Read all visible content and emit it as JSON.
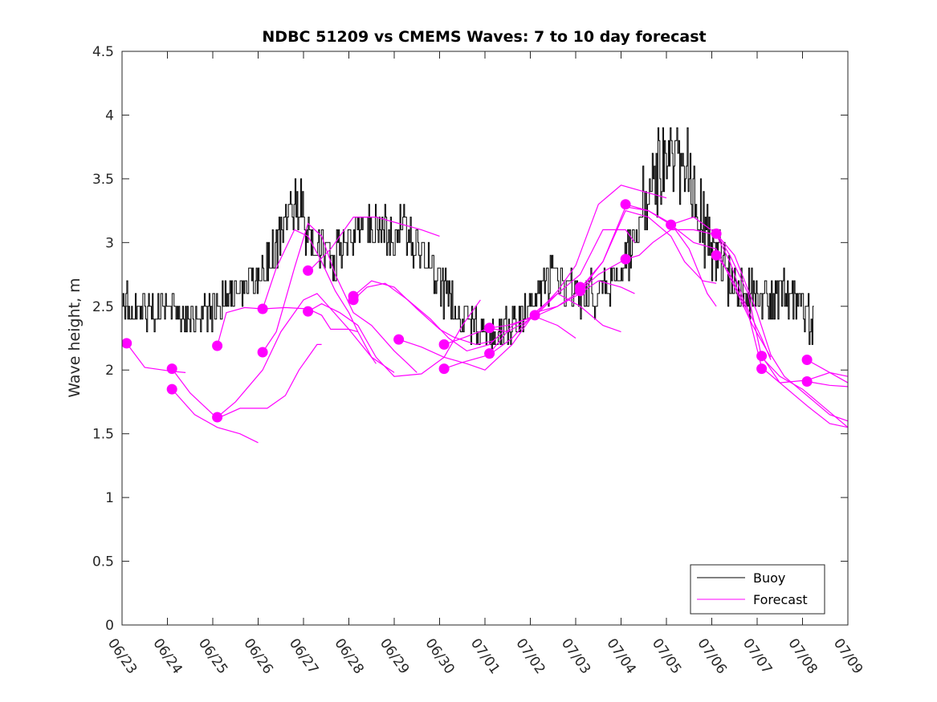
{
  "chart_data": {
    "type": "line",
    "title": "NDBC 51209 vs CMEMS Waves: 7 to 10 day forecast",
    "xlabel": "",
    "ylabel": "Wave height, m",
    "xlim": [
      0,
      16
    ],
    "ylim": [
      0,
      4.5
    ],
    "x_ticks": [
      0,
      1,
      2,
      3,
      4,
      5,
      6,
      7,
      8,
      9,
      10,
      11,
      12,
      13,
      14,
      15,
      16
    ],
    "x_tick_labels": [
      "06/23",
      "06/24",
      "06/25",
      "06/26",
      "06/27",
      "06/28",
      "06/29",
      "06/30",
      "07/01",
      "07/02",
      "07/03",
      "07/04",
      "07/05",
      "07/06",
      "07/07",
      "07/08",
      "07/09"
    ],
    "y_ticks": [
      0,
      0.5,
      1,
      1.5,
      2,
      2.5,
      3,
      3.5,
      4,
      4.5
    ],
    "y_tick_labels": [
      "0",
      "0.5",
      "1",
      "1.5",
      "2",
      "2.5",
      "3",
      "3.5",
      "4",
      "4.5"
    ],
    "grid": false,
    "legend": {
      "placement": "bottom-right",
      "entries": [
        "Buoy",
        "Forecast"
      ]
    },
    "colors": {
      "buoy": "#000000",
      "forecast": "#ff00ff"
    },
    "buoy": {
      "name": "Buoy",
      "x_range": [
        0,
        15.25
      ],
      "anchors": [
        [
          0,
          2.55
        ],
        [
          0.5,
          2.45
        ],
        [
          1,
          2.45
        ],
        [
          1.5,
          2.4
        ],
        [
          2,
          2.45
        ],
        [
          2.5,
          2.6
        ],
        [
          3,
          2.7
        ],
        [
          3.5,
          3.05
        ],
        [
          3.8,
          3.3
        ],
        [
          4,
          3.2
        ],
        [
          4.3,
          2.95
        ],
        [
          4.6,
          2.85
        ],
        [
          5,
          3.05
        ],
        [
          5.5,
          3.15
        ],
        [
          6,
          3.1
        ],
        [
          6.5,
          2.95
        ],
        [
          7,
          2.65
        ],
        [
          7.5,
          2.45
        ],
        [
          8,
          2.25
        ],
        [
          8.5,
          2.35
        ],
        [
          9,
          2.5
        ],
        [
          9.5,
          2.75
        ],
        [
          10,
          2.55
        ],
        [
          10.5,
          2.6
        ],
        [
          11,
          2.75
        ],
        [
          11.5,
          3.3
        ],
        [
          12,
          3.65
        ],
        [
          12.5,
          3.55
        ],
        [
          13,
          3.0
        ],
        [
          13.5,
          2.7
        ],
        [
          14,
          2.55
        ],
        [
          14.5,
          2.6
        ],
        [
          15,
          2.5
        ],
        [
          15.25,
          2.3
        ]
      ],
      "amplitude": [
        [
          0,
          0.14
        ],
        [
          3,
          0.14
        ],
        [
          3.5,
          0.22
        ],
        [
          4.5,
          0.22
        ],
        [
          5,
          0.2
        ],
        [
          7,
          0.18
        ],
        [
          8,
          0.12
        ],
        [
          9,
          0.15
        ],
        [
          11,
          0.15
        ],
        [
          11.5,
          0.28
        ],
        [
          12.8,
          0.3
        ],
        [
          13.5,
          0.2
        ],
        [
          15.25,
          0.18
        ]
      ]
    },
    "forecast": {
      "name": "Forecast",
      "lines": [
        [
          [
            0.1,
            2.21
          ],
          [
            0.5,
            2.02
          ],
          [
            1.1,
            1.99
          ],
          [
            1.4,
            1.98
          ]
        ],
        [
          [
            1.1,
            1.85
          ],
          [
            1.6,
            1.65
          ],
          [
            2.1,
            1.55
          ],
          [
            2.6,
            1.5
          ],
          [
            3.0,
            1.43
          ]
        ],
        [
          [
            1.1,
            2.01
          ],
          [
            1.5,
            1.82
          ],
          [
            2.1,
            1.62
          ],
          [
            2.6,
            1.7
          ],
          [
            3.2,
            1.7
          ],
          [
            3.6,
            1.8
          ],
          [
            3.9,
            2.0
          ],
          [
            4.3,
            2.2
          ],
          [
            4.4,
            2.2
          ]
        ],
        [
          [
            2.1,
            1.63
          ],
          [
            2.5,
            1.75
          ],
          [
            3.1,
            2.0
          ],
          [
            3.5,
            2.3
          ],
          [
            4.0,
            2.55
          ],
          [
            4.3,
            2.6
          ],
          [
            4.5,
            2.52
          ],
          [
            5.0,
            2.32
          ],
          [
            5.5,
            2.1
          ],
          [
            6.0,
            1.98
          ]
        ],
        [
          [
            2.1,
            2.19
          ],
          [
            2.3,
            2.45
          ],
          [
            2.7,
            2.49
          ],
          [
            3.1,
            2.48
          ],
          [
            3.6,
            2.49
          ],
          [
            4.1,
            2.48
          ],
          [
            4.4,
            2.43
          ],
          [
            4.6,
            2.32
          ],
          [
            5.0,
            2.32
          ],
          [
            5.2,
            2.3
          ]
        ],
        [
          [
            3.1,
            2.14
          ],
          [
            3.4,
            2.3
          ],
          [
            3.8,
            2.8
          ],
          [
            4.1,
            3.15
          ],
          [
            4.4,
            3.05
          ],
          [
            4.7,
            2.75
          ],
          [
            5.1,
            2.45
          ],
          [
            5.5,
            2.35
          ],
          [
            6.0,
            2.15
          ],
          [
            6.3,
            2.05
          ],
          [
            6.5,
            1.98
          ]
        ],
        [
          [
            3.1,
            2.48
          ],
          [
            3.4,
            2.8
          ],
          [
            3.8,
            3.1
          ],
          [
            4.1,
            3.05
          ],
          [
            4.4,
            2.85
          ],
          [
            4.7,
            2.62
          ],
          [
            5.0,
            2.45
          ],
          [
            5.2,
            2.3
          ],
          [
            5.5,
            2.1
          ],
          [
            5.6,
            2.05
          ]
        ],
        [
          [
            4.1,
            2.46
          ],
          [
            4.4,
            2.52
          ],
          [
            4.8,
            2.45
          ],
          [
            5.2,
            2.35
          ],
          [
            5.6,
            2.1
          ],
          [
            6.0,
            1.95
          ],
          [
            6.6,
            1.97
          ],
          [
            7.1,
            2.1
          ],
          [
            7.5,
            2.35
          ],
          [
            7.9,
            2.55
          ]
        ],
        [
          [
            4.1,
            2.77
          ],
          [
            4.6,
            2.95
          ],
          [
            5.1,
            3.2
          ],
          [
            5.6,
            3.2
          ],
          [
            6.1,
            3.15
          ],
          [
            6.6,
            3.1
          ],
          [
            7.0,
            3.05
          ]
        ],
        [
          [
            5.1,
            2.55
          ],
          [
            5.4,
            2.65
          ],
          [
            5.8,
            2.68
          ],
          [
            6.3,
            2.55
          ],
          [
            6.8,
            2.4
          ],
          [
            7.2,
            2.25
          ],
          [
            7.6,
            2.15
          ],
          [
            8.1,
            2.2
          ],
          [
            8.4,
            2.3
          ]
        ],
        [
          [
            5.1,
            2.58
          ],
          [
            5.5,
            2.7
          ],
          [
            6.0,
            2.65
          ],
          [
            6.5,
            2.48
          ],
          [
            7.0,
            2.32
          ],
          [
            7.3,
            2.26
          ],
          [
            7.8,
            2.2
          ],
          [
            8.2,
            2.23
          ]
        ],
        [
          [
            6.1,
            2.24
          ],
          [
            6.6,
            2.18
          ],
          [
            7.1,
            2.1
          ],
          [
            7.6,
            2.05
          ],
          [
            8.0,
            2.0
          ],
          [
            8.6,
            2.2
          ],
          [
            9.1,
            2.45
          ],
          [
            9.6,
            2.6
          ],
          [
            10.1,
            2.5
          ],
          [
            10.6,
            2.35
          ],
          [
            11.0,
            2.3
          ]
        ],
        [
          [
            7.1,
            2.01
          ],
          [
            7.5,
            2.06
          ],
          [
            8.1,
            2.12
          ],
          [
            8.6,
            2.25
          ],
          [
            9.1,
            2.45
          ],
          [
            9.6,
            2.5
          ],
          [
            10.1,
            2.6
          ],
          [
            10.5,
            2.7
          ],
          [
            11.0,
            2.65
          ],
          [
            11.3,
            2.6
          ]
        ],
        [
          [
            7.1,
            2.2
          ],
          [
            7.5,
            2.25
          ],
          [
            8.1,
            2.33
          ],
          [
            8.5,
            2.3
          ],
          [
            9.1,
            2.42
          ],
          [
            9.6,
            2.6
          ],
          [
            10.1,
            2.75
          ],
          [
            10.6,
            3.1
          ],
          [
            11.1,
            3.1
          ],
          [
            11.3,
            3.0
          ]
        ],
        [
          [
            8.1,
            2.33
          ],
          [
            8.5,
            2.35
          ],
          [
            9.1,
            2.42
          ],
          [
            9.6,
            2.35
          ],
          [
            10.0,
            2.25
          ]
        ],
        [
          [
            8.1,
            2.13
          ],
          [
            8.6,
            2.35
          ],
          [
            9.1,
            2.43
          ],
          [
            9.6,
            2.62
          ],
          [
            10.0,
            2.82
          ],
          [
            10.5,
            3.3
          ],
          [
            11.0,
            3.45
          ],
          [
            11.5,
            3.4
          ],
          [
            12.0,
            3.35
          ]
        ],
        [
          [
            9.1,
            2.42
          ],
          [
            9.6,
            2.5
          ],
          [
            10.1,
            2.62
          ],
          [
            10.6,
            2.85
          ],
          [
            11.1,
            3.28
          ],
          [
            11.6,
            3.25
          ],
          [
            12.1,
            3.15
          ],
          [
            12.5,
            2.95
          ],
          [
            12.9,
            2.6
          ],
          [
            13.1,
            2.5
          ]
        ],
        [
          [
            10.1,
            2.64
          ],
          [
            10.6,
            2.85
          ],
          [
            11.1,
            3.25
          ],
          [
            11.6,
            3.2
          ],
          [
            12.1,
            3.05
          ],
          [
            12.4,
            2.85
          ],
          [
            12.8,
            2.7
          ],
          [
            13.1,
            2.68
          ]
        ],
        [
          [
            10.1,
            2.62
          ],
          [
            10.5,
            2.75
          ],
          [
            11.1,
            2.87
          ],
          [
            11.4,
            2.9
          ],
          [
            11.7,
            3.0
          ],
          [
            12.1,
            3.1
          ],
          [
            12.6,
            3.1
          ],
          [
            13.1,
            3.06
          ],
          [
            13.4,
            2.85
          ],
          [
            13.7,
            2.55
          ],
          [
            14.1,
            2.25
          ],
          [
            14.3,
            2.08
          ]
        ],
        [
          [
            11.1,
            3.3
          ],
          [
            11.6,
            3.25
          ],
          [
            12.1,
            3.14
          ],
          [
            12.6,
            3.0
          ],
          [
            13.1,
            2.95
          ],
          [
            13.5,
            2.65
          ],
          [
            13.9,
            2.35
          ],
          [
            14.3,
            2.1
          ]
        ],
        [
          [
            12.1,
            3.14
          ],
          [
            12.6,
            3.2
          ],
          [
            13.1,
            3.07
          ],
          [
            13.5,
            2.9
          ],
          [
            14.0,
            2.45
          ],
          [
            14.3,
            2.12
          ],
          [
            14.6,
            1.95
          ],
          [
            15.1,
            1.8
          ],
          [
            15.6,
            1.65
          ],
          [
            16.0,
            1.6
          ]
        ],
        [
          [
            13.1,
            3.07
          ],
          [
            13.4,
            2.9
          ],
          [
            13.8,
            2.6
          ],
          [
            14.1,
            2.1
          ],
          [
            14.5,
            1.95
          ],
          [
            15.0,
            1.85
          ],
          [
            15.5,
            1.7
          ],
          [
            16.0,
            1.55
          ]
        ],
        [
          [
            13.1,
            2.9
          ],
          [
            13.4,
            2.75
          ],
          [
            13.8,
            2.45
          ],
          [
            14.1,
            2.02
          ],
          [
            14.5,
            1.9
          ],
          [
            15.1,
            1.92
          ],
          [
            15.6,
            1.98
          ],
          [
            16.0,
            1.95
          ]
        ],
        [
          [
            14.1,
            2.11
          ],
          [
            14.5,
            1.9
          ],
          [
            15.1,
            1.72
          ],
          [
            15.6,
            1.58
          ],
          [
            16.0,
            1.55
          ]
        ],
        [
          [
            15.1,
            1.91
          ],
          [
            15.6,
            1.88
          ],
          [
            16.0,
            1.87
          ]
        ],
        [
          [
            15.1,
            2.08
          ],
          [
            15.5,
            2.0
          ],
          [
            16.0,
            1.9
          ]
        ]
      ],
      "markers": [
        [
          0.1,
          2.21
        ],
        [
          1.1,
          2.01
        ],
        [
          1.1,
          1.85
        ],
        [
          2.1,
          2.19
        ],
        [
          2.1,
          1.63
        ],
        [
          3.1,
          2.48
        ],
        [
          3.1,
          2.14
        ],
        [
          4.1,
          2.78
        ],
        [
          4.1,
          2.46
        ],
        [
          5.1,
          2.58
        ],
        [
          5.1,
          2.55
        ],
        [
          6.1,
          2.24
        ],
        [
          7.1,
          2.2
        ],
        [
          7.1,
          2.01
        ],
        [
          8.1,
          2.33
        ],
        [
          8.1,
          2.13
        ],
        [
          9.1,
          2.43
        ],
        [
          10.1,
          2.65
        ],
        [
          10.1,
          2.62
        ],
        [
          11.1,
          3.3
        ],
        [
          11.1,
          2.87
        ],
        [
          12.1,
          3.14
        ],
        [
          13.1,
          3.07
        ],
        [
          13.1,
          2.9
        ],
        [
          14.1,
          2.11
        ],
        [
          14.1,
          2.01
        ],
        [
          15.1,
          2.08
        ],
        [
          15.1,
          1.91
        ]
      ]
    }
  }
}
